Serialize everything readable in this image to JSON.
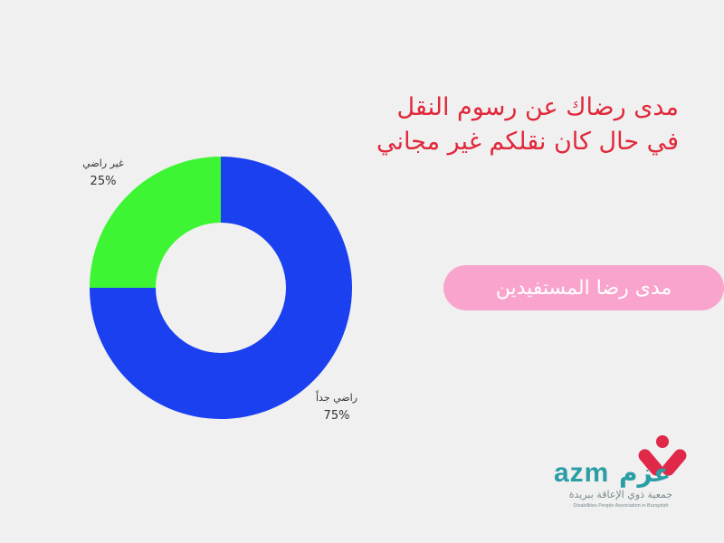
{
  "title": {
    "line1": "مدى رضاك عن رسوم النقل",
    "line2": "في حال كان نقلكم غير مجاني"
  },
  "pill_label": "مدى رضا المستفيدين",
  "colors": {
    "background": "#f0f0f0",
    "title": "#e0283a",
    "pill": "#f9a4cd",
    "logo_teal": "#2a9ea5",
    "logo_red": "#e02848"
  },
  "chart_data": {
    "type": "pie",
    "variant": "donut",
    "title": "",
    "series": [
      {
        "category": "راضي جداً",
        "value": 75,
        "label": "75%",
        "color": "#1b40ef"
      },
      {
        "category": "غير راضي",
        "value": 25,
        "label": "25%",
        "color": "#3ef533"
      }
    ]
  },
  "logo": {
    "latin": "azm",
    "arabic": "عزم",
    "subtitle_ar": "جمعية ذوي الإعاقة ببريدة",
    "subtitle_en": "Disabilities People Association in Buraydah",
    "icon": "heart-person-icon"
  }
}
